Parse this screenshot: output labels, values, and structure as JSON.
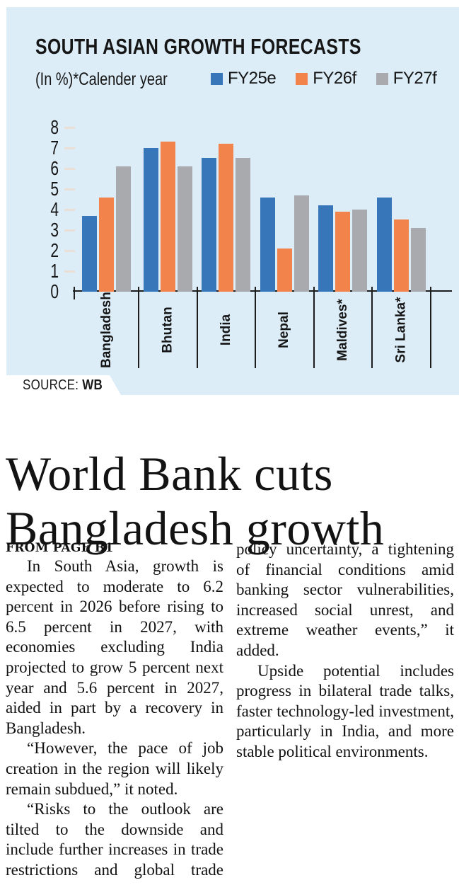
{
  "chart": {
    "panel_bg": "#dcedf8",
    "axis_color": "#1d1d1d",
    "tick_dash_color": "#eadfd7"
  },
  "chart_data": {
    "type": "bar",
    "title": "SOUTH ASIAN GROWTH FORECASTS",
    "subtitle": "(In %)*Calender year",
    "categories": [
      "Bangladesh",
      "Bhutan",
      "India",
      "Nepal",
      "Maldives*",
      "Sri Lanka*"
    ],
    "series": [
      {
        "name": "FY25e",
        "color": "#3776b9",
        "values": [
          3.7,
          7.0,
          6.5,
          4.6,
          4.2,
          4.6
        ]
      },
      {
        "name": "FY26f",
        "color": "#f2834a",
        "values": [
          4.6,
          7.3,
          7.2,
          2.1,
          3.9,
          3.5
        ]
      },
      {
        "name": "FY27f",
        "color": "#a8aaad",
        "values": [
          6.1,
          6.1,
          6.5,
          4.7,
          4.0,
          3.1
        ]
      }
    ],
    "ylim": [
      0,
      8
    ],
    "yticks": [
      0,
      1,
      2,
      3,
      4,
      5,
      6,
      7,
      8
    ],
    "legend_position": "top-right",
    "grid": "tick-dashes-only",
    "source": "WB"
  },
  "source": {
    "label": "SOURCE: ",
    "value": "WB"
  },
  "article": {
    "headline": "World Bank cuts Bangladesh growth",
    "kicker": "FROM PAGE B1",
    "paragraphs": [
      "In South Asia, growth is expected to moderate to 6.2 percent in 2026 before rising to 6.5 percent in 2027, with economies excluding India projected to grow 5 percent next year and 5.6 percent in 2027, aided in part by a recovery in Bangladesh.",
      "“However, the pace of job creation in the region will likely remain subdued,” it noted.",
      "“Risks to the outlook are tilted to the downside and include further increases in trade restrictions and global trade policy uncertainty, a tightening of financial conditions amid banking sector vulnerabilities, increased social unrest, and extreme weather events,” it added.",
      "Upside potential includes progress in bilateral trade talks, faster technology-led investment, particularly in India, and more stable political environments."
    ]
  }
}
